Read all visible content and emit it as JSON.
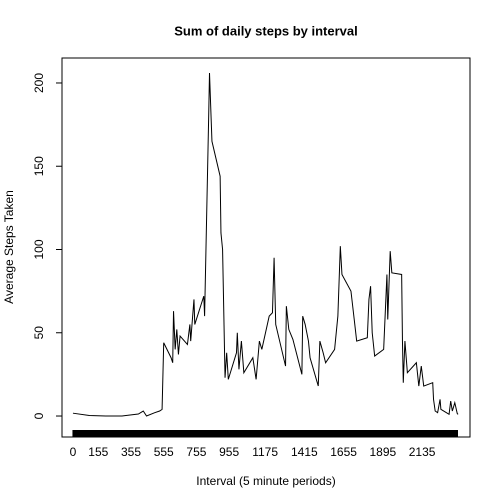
{
  "chart_data": {
    "type": "line",
    "title": "Sum of daily steps by interval",
    "x_label": "Interval (5 minute periods)",
    "y_label": "Average Steps Taken",
    "color": "#000000",
    "x": [
      0,
      100,
      200,
      300,
      400,
      430,
      450,
      500,
      530,
      545,
      555,
      600,
      610,
      615,
      625,
      635,
      645,
      655,
      700,
      715,
      720,
      740,
      745,
      800,
      805,
      830,
      835,
      850,
      900,
      905,
      915,
      930,
      940,
      950,
      1000,
      1005,
      1015,
      1030,
      1045,
      1100,
      1120,
      1140,
      1155,
      1200,
      1220,
      1230,
      1240,
      1300,
      1305,
      1320,
      1345,
      1400,
      1405,
      1420,
      1440,
      1450,
      1500,
      1510,
      1530,
      1545,
      1600,
      1620,
      1635,
      1645,
      1700,
      1720,
      1735,
      1800,
      1810,
      1820,
      1830,
      1845,
      1900,
      1920,
      1925,
      1940,
      1950,
      2010,
      2015,
      2020,
      2030,
      2045,
      2100,
      2115,
      2130,
      2145,
      2200,
      2205,
      2215,
      2230,
      2245,
      2250,
      2300,
      2310,
      2320,
      2335,
      2350,
      2355
    ],
    "values": [
      1.7,
      0.3,
      0,
      0,
      1.2,
      3,
      0,
      2,
      3,
      4,
      44,
      35,
      32,
      63,
      40,
      52,
      37,
      48,
      43,
      55,
      45,
      70,
      55,
      72,
      60,
      180,
      206,
      165,
      144,
      110,
      100,
      23,
      38,
      22,
      38,
      50,
      28,
      45,
      26,
      35,
      22,
      45,
      40,
      60,
      62,
      95,
      55,
      30,
      66,
      52,
      46,
      25,
      60,
      55,
      45,
      35,
      18,
      45,
      38,
      32,
      40,
      60,
      102,
      85,
      75,
      58,
      45,
      47,
      70,
      78,
      50,
      36,
      40,
      85,
      58,
      99,
      86,
      85,
      45,
      20,
      45,
      26,
      32,
      18,
      30,
      18,
      20,
      10,
      3,
      2,
      10,
      4,
      1,
      9,
      3,
      8,
      1.5,
      1
    ],
    "xlim": [
      -67,
      2428
    ],
    "ylim": [
      -12.6,
      215
    ],
    "xticks": [
      0,
      155,
      355,
      555,
      755,
      955,
      1175,
      1415,
      1655,
      1895,
      2135
    ],
    "yticks": [
      0,
      50,
      100,
      150,
      200
    ]
  }
}
